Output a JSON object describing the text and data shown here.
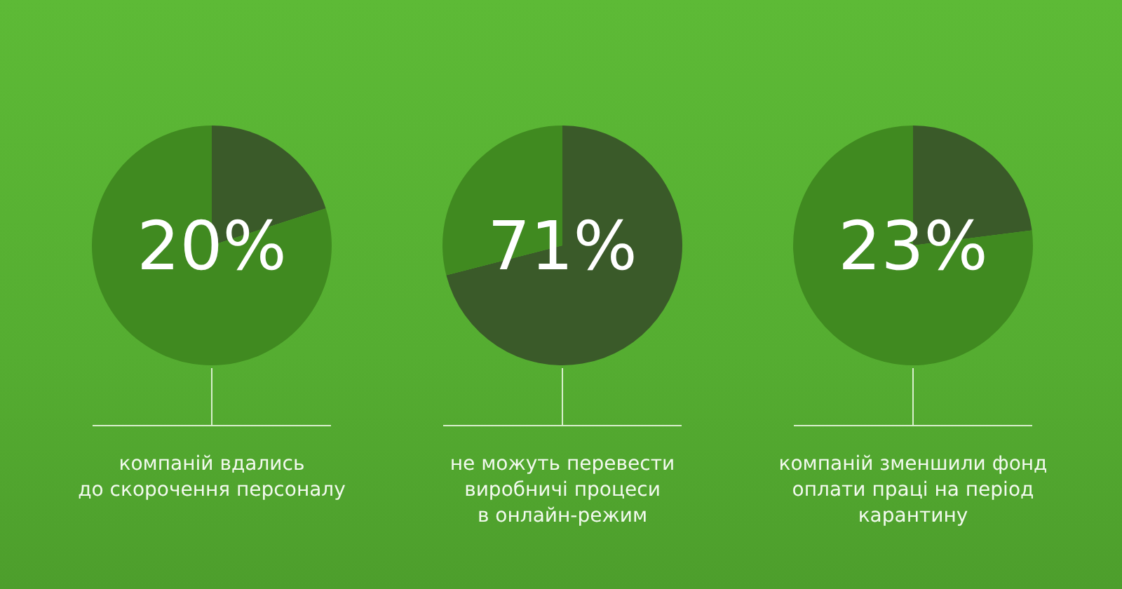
{
  "chart_data": [
    {
      "type": "pie",
      "title": "20%",
      "categories": [
        null,
        null
      ],
      "values": [
        20,
        80
      ],
      "colors": [
        "#3a5a29",
        "#408a20"
      ],
      "annotations": [
        "компаній вдались\nдо скорочення персоналу"
      ]
    },
    {
      "type": "pie",
      "title": "71%",
      "categories": [
        null,
        null
      ],
      "values": [
        71,
        29
      ],
      "colors": [
        "#3a5a29",
        "#408a20"
      ],
      "annotations": [
        "не можуть перевести\nвиробничі процеси\nв онлайн-режим"
      ]
    },
    {
      "type": "pie",
      "title": "23%",
      "categories": [
        null,
        null
      ],
      "values": [
        23,
        77
      ],
      "colors": [
        "#3a5a29",
        "#408a20"
      ],
      "annotations": [
        "компаній зменшили фонд\nоплати праці на період\nкарантину"
      ]
    }
  ]
}
